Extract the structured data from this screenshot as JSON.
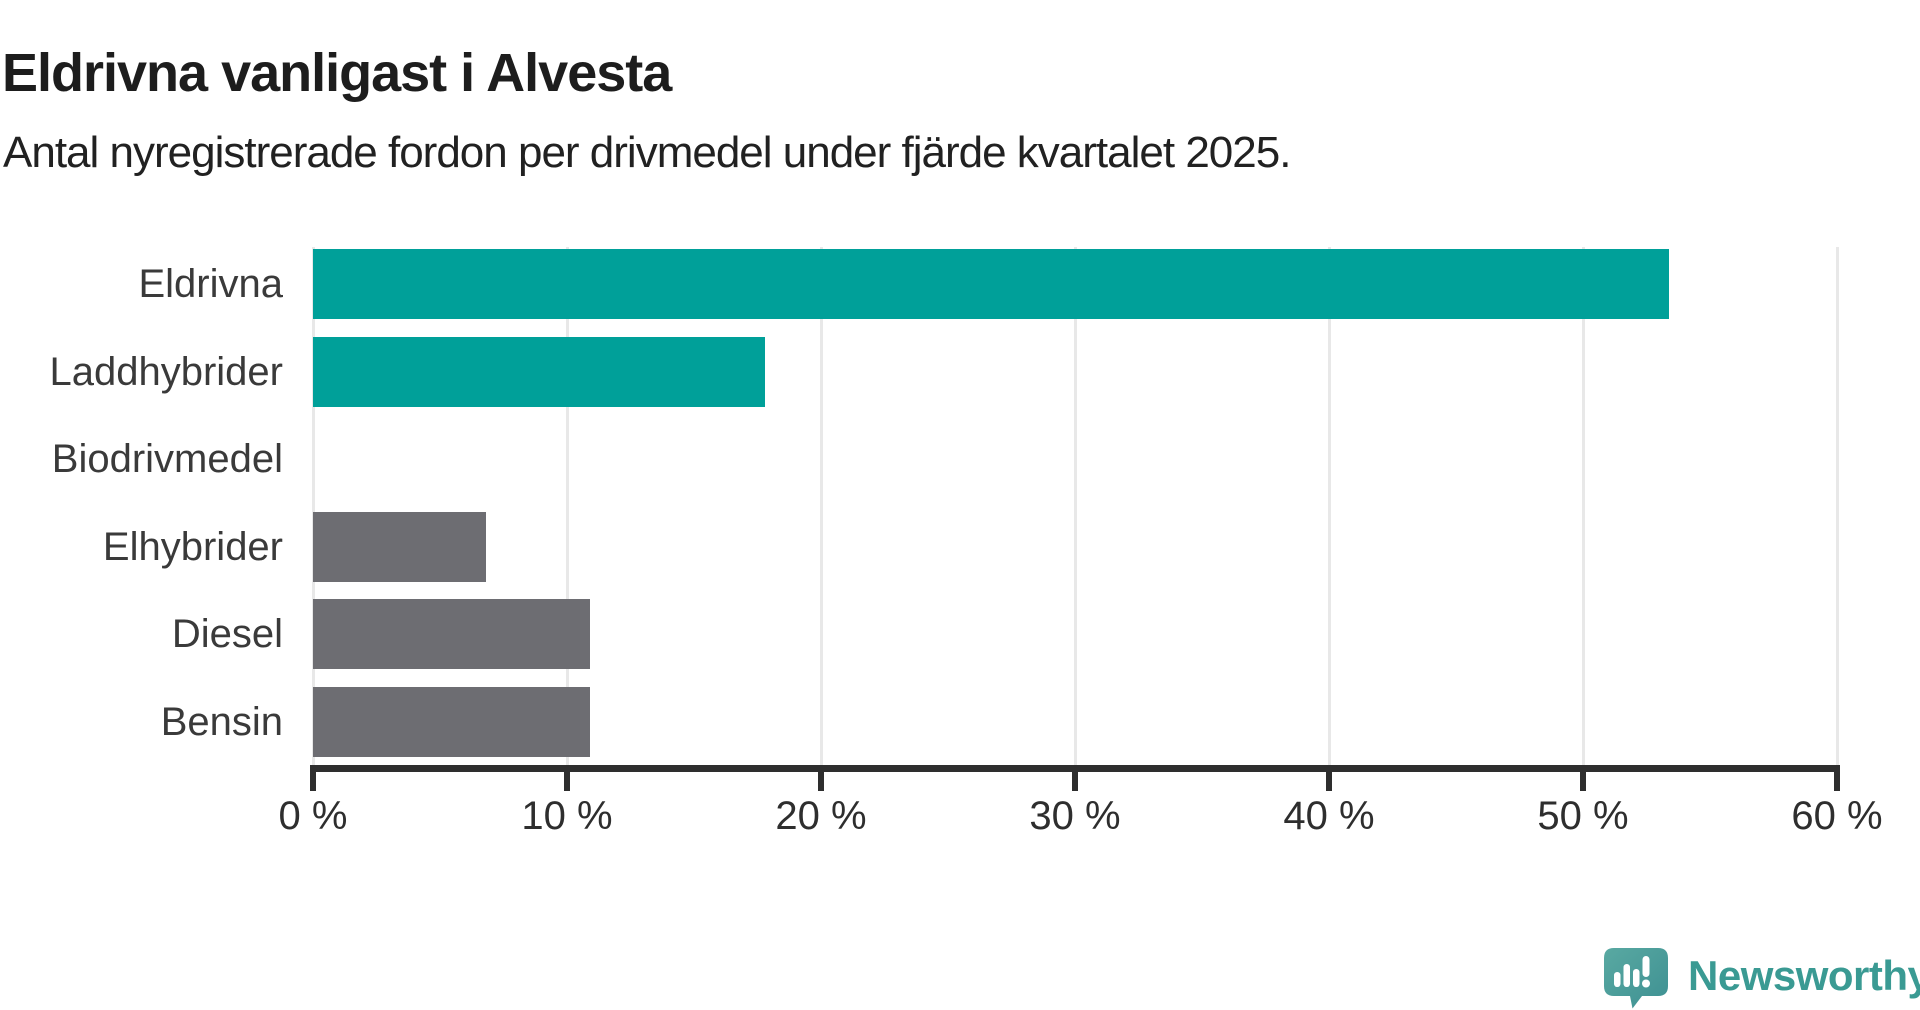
{
  "header": {
    "title": "Eldrivna vanligast i Alvesta",
    "subtitle": "Antal nyregistrerade fordon per drivmedel under fjärde kvartalet 2025."
  },
  "chart_data": {
    "type": "bar",
    "orientation": "horizontal",
    "title": "Eldrivna vanligast i Alvesta",
    "subtitle": "Antal nyregistrerade fordon per drivmedel under fjärde kvartalet 2025.",
    "categories": [
      "Eldrivna",
      "Laddhybrider",
      "Biodrivmedel",
      "Elhybrider",
      "Diesel",
      "Bensin"
    ],
    "values": [
      53.4,
      17.8,
      0,
      6.8,
      10.9,
      10.9
    ],
    "unit": "%",
    "bar_colors": [
      "#00a099",
      "#00a099",
      "#6d6d72",
      "#6d6d72",
      "#6d6d72",
      "#6d6d72"
    ],
    "x_tick_labels": [
      "0 %",
      "10 %",
      "20 %",
      "30 %",
      "40 %",
      "50 %",
      "60 %"
    ],
    "x_tick_values": [
      0,
      10,
      20,
      30,
      40,
      50,
      60
    ],
    "xlim": [
      0,
      60
    ],
    "ylabel": "",
    "xlabel": "",
    "grid": "vertical",
    "legend": "none"
  },
  "colors": {
    "highlight": "#00a099",
    "base": "#6d6d72",
    "gridline": "#e8e8e8",
    "axis": "#2e2e2e",
    "text": "#212121"
  },
  "branding": {
    "name": "Newsworthy",
    "wordmark": "Newsworthy",
    "wordmark_color": "#3a9a93",
    "icon": "newsworthy-speech-bubble-bar-chart-icon",
    "icon_color_top": "#59a9a2",
    "icon_color_bottom": "#3e9092"
  }
}
